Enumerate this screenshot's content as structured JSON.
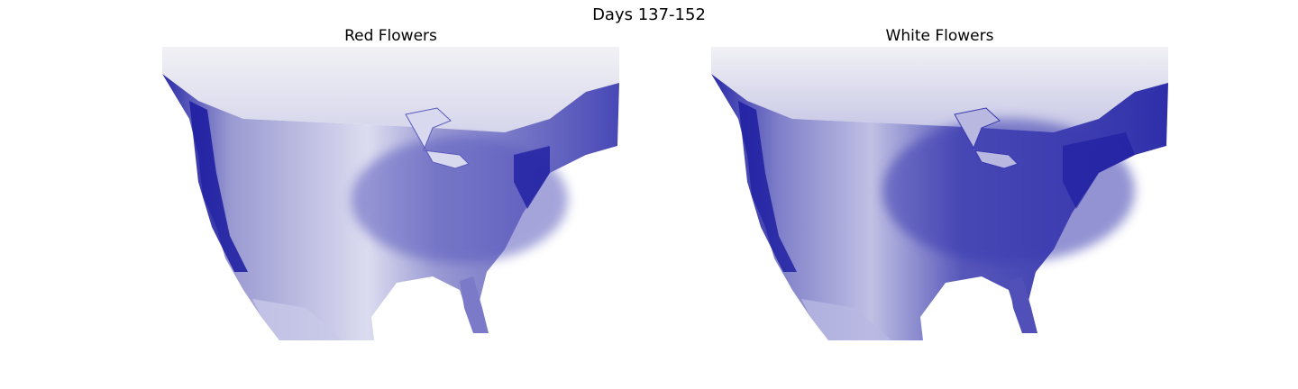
{
  "figure": {
    "title": "Days 137-152"
  },
  "panels": [
    {
      "title": "Red Flowers",
      "colormap": [
        "#ffffff",
        "#1a1aa0"
      ]
    },
    {
      "title": "White Flowers",
      "colormap": [
        "#ffffff",
        "#1a1aa0"
      ]
    }
  ]
}
